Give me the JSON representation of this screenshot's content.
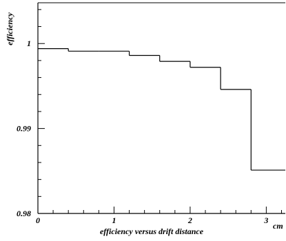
{
  "chart_data": {
    "type": "line",
    "step": true,
    "xlabel": "efficiency versus drift distance",
    "x_unit": "cm",
    "ylabel": "efficiency",
    "xlim": [
      0,
      3.25
    ],
    "ylim": [
      0.98,
      1.0048
    ],
    "x_ticks": [
      0,
      1,
      2,
      3
    ],
    "x_tick_labels": [
      "0",
      "1",
      "2",
      "3"
    ],
    "y_ticks": [
      0.98,
      0.99,
      1.0
    ],
    "y_tick_labels": [
      "0.98",
      "0.99",
      "1"
    ],
    "grid": false,
    "bins": [
      {
        "x0": 0.0,
        "x1": 0.4,
        "y": 0.9994
      },
      {
        "x0": 0.4,
        "x1": 0.8,
        "y": 0.9991
      },
      {
        "x0": 0.8,
        "x1": 1.2,
        "y": 0.9991
      },
      {
        "x0": 1.2,
        "x1": 1.6,
        "y": 0.9986
      },
      {
        "x0": 1.6,
        "x1": 2.0,
        "y": 0.9979
      },
      {
        "x0": 2.0,
        "x1": 2.4,
        "y": 0.9972
      },
      {
        "x0": 2.4,
        "x1": 2.8,
        "y": 0.9946
      },
      {
        "x0": 2.8,
        "x1": 3.25,
        "y": 0.9851
      }
    ]
  }
}
